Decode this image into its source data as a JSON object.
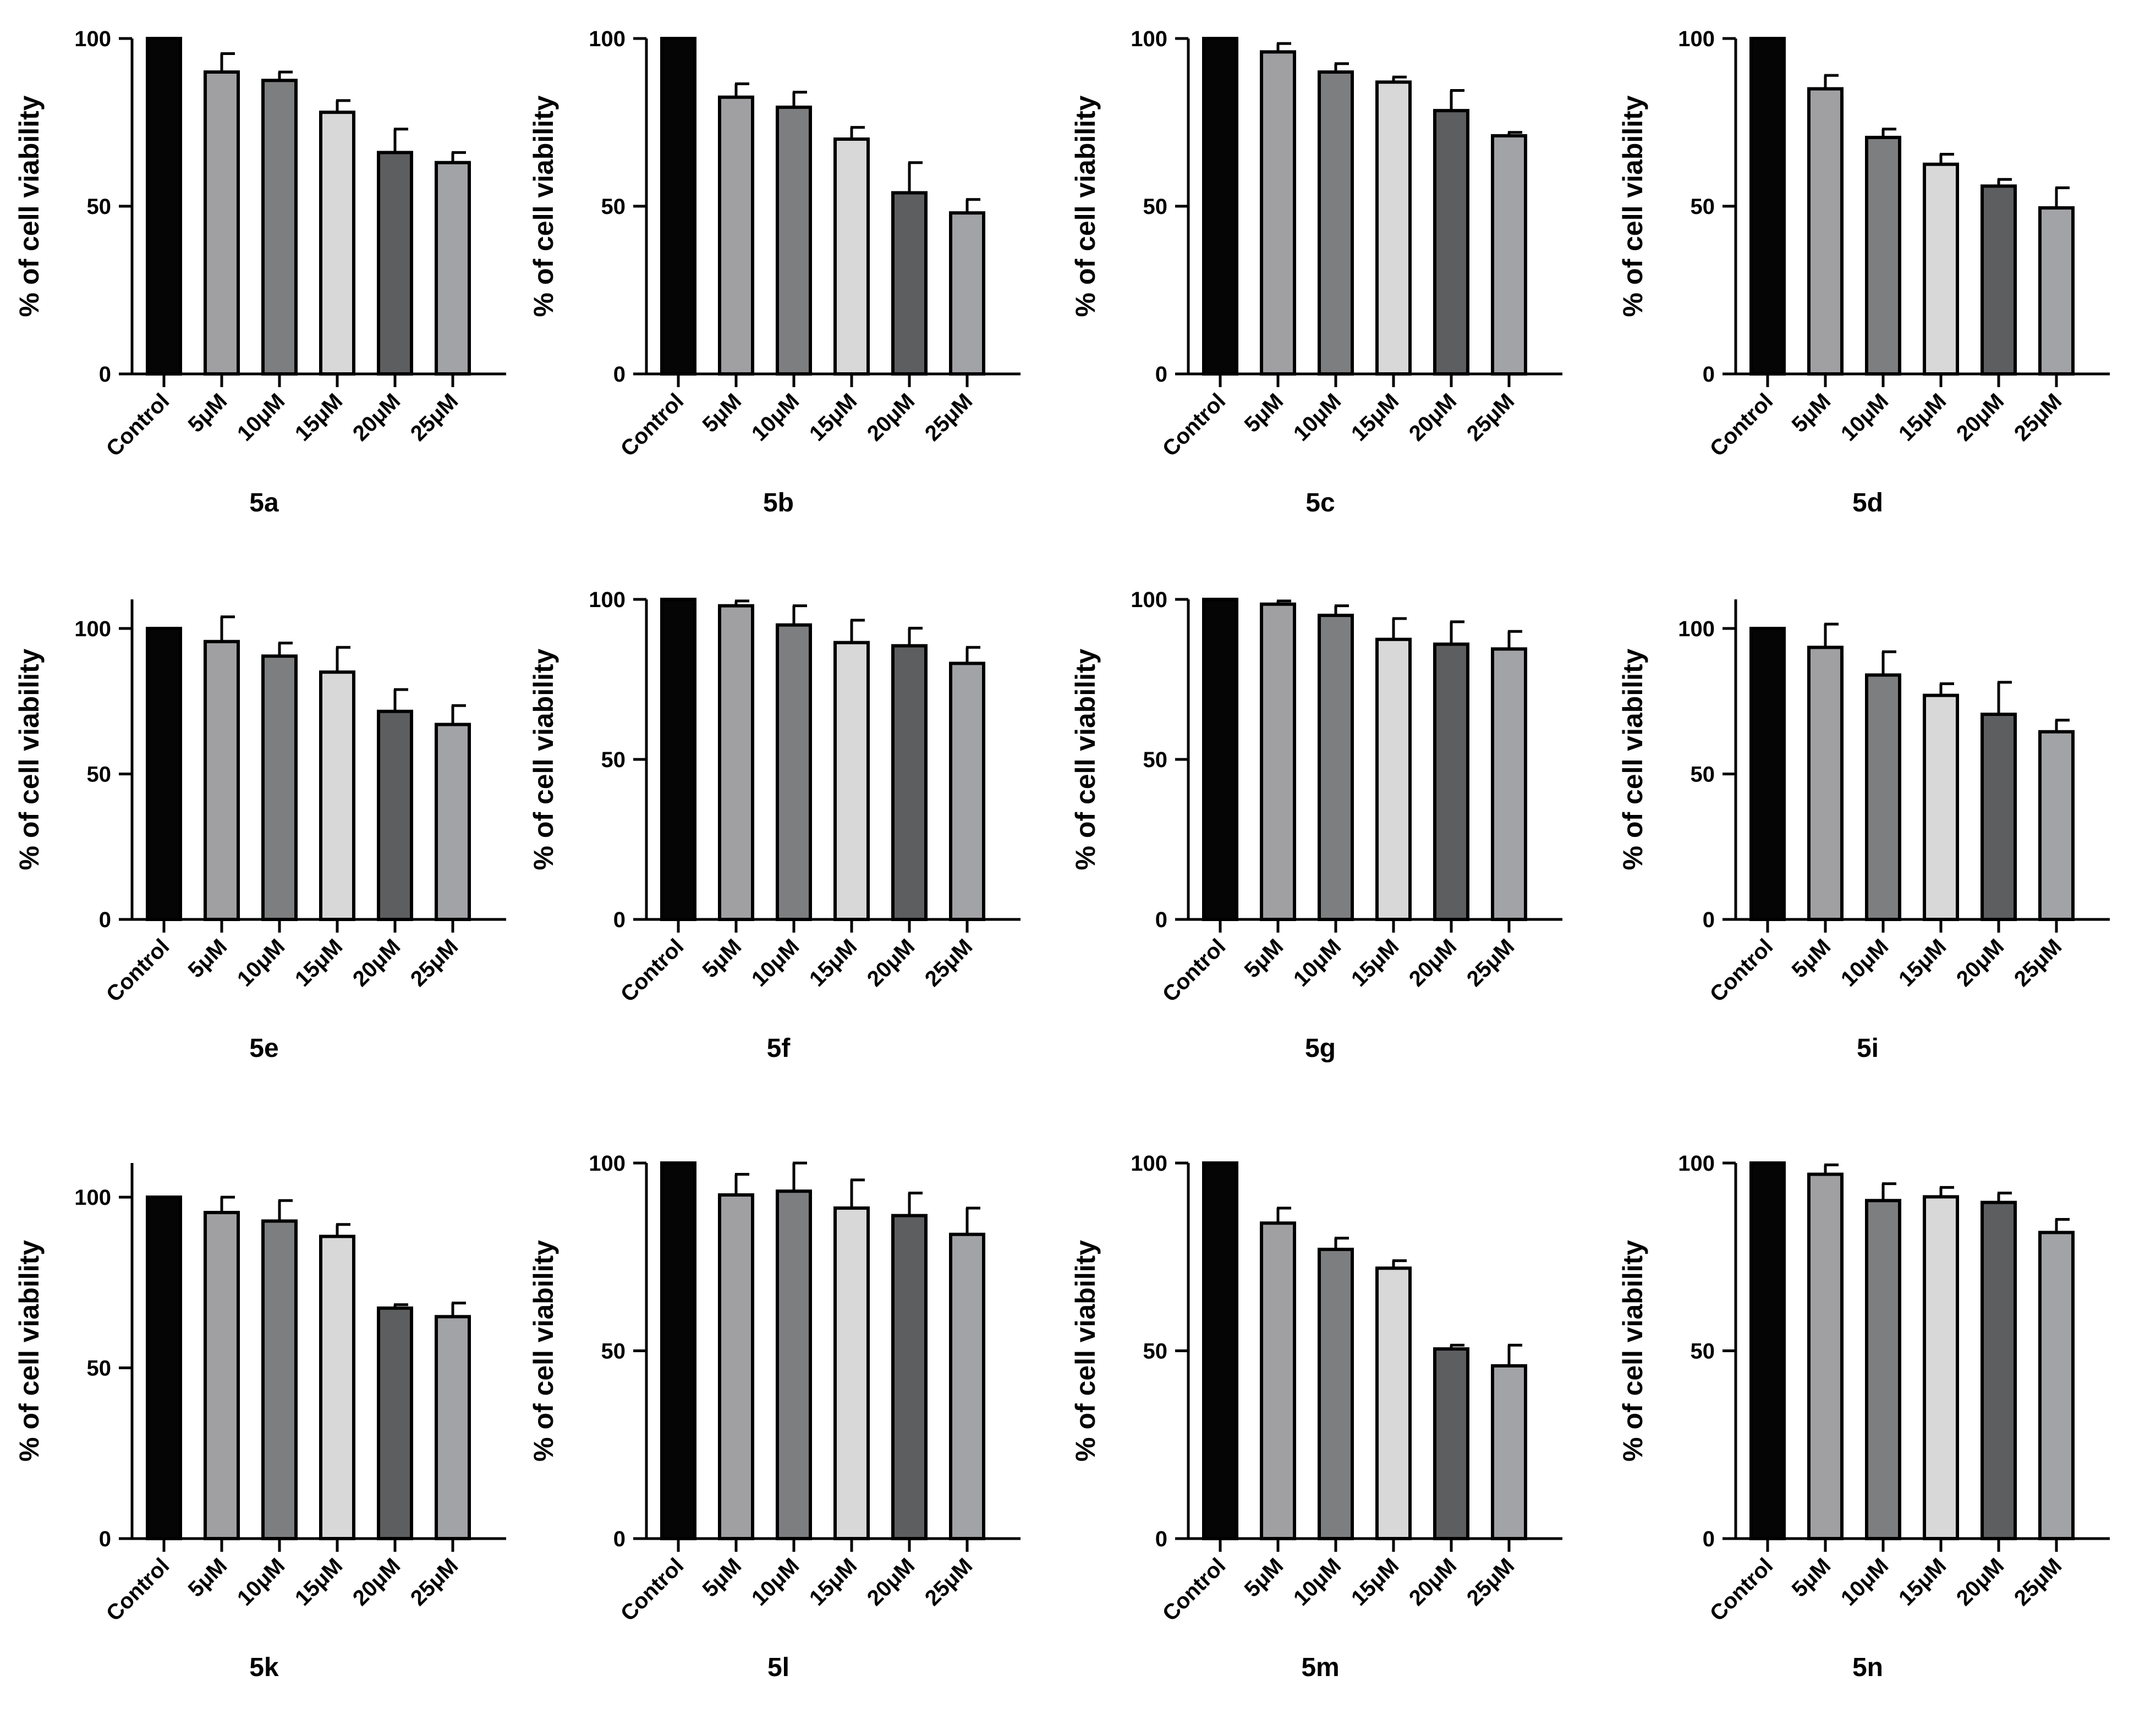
{
  "colors": {
    "axis": "#000000",
    "bar_outline": "#000000",
    "bar_fills": [
      "#050505",
      "#a0a0a3",
      "#7d7e80",
      "#d8d8d8",
      "#5d5e60",
      "#a2a3a6"
    ]
  },
  "chart_data": [
    {
      "type": "bar",
      "title": "5a",
      "xlabel": "5a",
      "ylabel": "% of cell viability",
      "ylim": [
        0,
        100
      ],
      "yticks": [
        0,
        50,
        100
      ],
      "categories": [
        "Control",
        "5μM",
        "10μM",
        "15μM",
        "20μM",
        "25μM"
      ],
      "values": [
        100,
        90,
        87.5,
        78,
        66,
        63
      ],
      "errors": [
        0,
        5.5,
        2.5,
        3.5,
        7,
        3
      ]
    },
    {
      "type": "bar",
      "title": "5b",
      "xlabel": "5b",
      "ylabel": "% of cell viability",
      "ylim": [
        0,
        100
      ],
      "yticks": [
        0,
        50,
        100
      ],
      "categories": [
        "Control",
        "5μM",
        "10μM",
        "15μM",
        "20μM",
        "25μM"
      ],
      "values": [
        100,
        82.5,
        79.5,
        70,
        54,
        48
      ],
      "errors": [
        0,
        4,
        4.5,
        3.5,
        9,
        4
      ]
    },
    {
      "type": "bar",
      "title": "5c",
      "xlabel": "5c",
      "ylabel": "% of cell viability",
      "ylim": [
        0,
        100
      ],
      "yticks": [
        0,
        50,
        100
      ],
      "categories": [
        "Control",
        "5μM",
        "10μM",
        "15μM",
        "20μM",
        "25μM"
      ],
      "values": [
        100,
        96,
        90,
        87,
        78.5,
        71
      ],
      "errors": [
        0,
        2.5,
        2.5,
        1.5,
        6,
        1
      ]
    },
    {
      "type": "bar",
      "title": "5d",
      "xlabel": "5d",
      "ylabel": "% of cell viability",
      "ylim": [
        0,
        100
      ],
      "yticks": [
        0,
        50,
        100
      ],
      "categories": [
        "Control",
        "5μM",
        "10μM",
        "15μM",
        "20μM",
        "25μM"
      ],
      "values": [
        100,
        85,
        70.5,
        62.5,
        56,
        49.5
      ],
      "errors": [
        0,
        4,
        2.5,
        3,
        2,
        6
      ]
    },
    {
      "type": "bar",
      "title": "5e",
      "xlabel": "5e",
      "ylabel": "% of cell viability",
      "ylim": [
        0,
        110
      ],
      "yticks": [
        0,
        50,
        100
      ],
      "categories": [
        "Control",
        "5μM",
        "10μM",
        "15μM",
        "20μM",
        "25μM"
      ],
      "values": [
        100,
        95.5,
        90.5,
        85,
        71.5,
        67
      ],
      "errors": [
        0,
        8.5,
        4.5,
        8.5,
        7.5,
        6.5
      ]
    },
    {
      "type": "bar",
      "title": "5f",
      "xlabel": "5f",
      "ylabel": "% of cell viability",
      "ylim": [
        0,
        100
      ],
      "yticks": [
        0,
        50,
        100
      ],
      "categories": [
        "Control",
        "5μM",
        "10μM",
        "15μM",
        "20μM",
        "25μM"
      ],
      "values": [
        100,
        98,
        92,
        86.5,
        85.5,
        80
      ],
      "errors": [
        0,
        1.5,
        6,
        7,
        5.5,
        5
      ]
    },
    {
      "type": "bar",
      "title": "5g",
      "xlabel": "5g",
      "ylabel": "% of cell viability",
      "ylim": [
        0,
        100
      ],
      "yticks": [
        0,
        50,
        100
      ],
      "categories": [
        "Control",
        "5μM",
        "10μM",
        "15μM",
        "20μM",
        "25μM"
      ],
      "values": [
        100,
        98.5,
        95,
        87.5,
        86,
        84.5
      ],
      "errors": [
        0,
        1,
        3,
        6.5,
        7,
        5.5
      ]
    },
    {
      "type": "bar",
      "title": "5i",
      "xlabel": "5i",
      "ylabel": "% of cell viability",
      "ylim": [
        0,
        110
      ],
      "yticks": [
        0,
        50,
        100
      ],
      "categories": [
        "Control",
        "5μM",
        "10μM",
        "15μM",
        "20μM",
        "25μM"
      ],
      "values": [
        100,
        93.5,
        84,
        77,
        70.5,
        64.5
      ],
      "errors": [
        0,
        8,
        8,
        4,
        11,
        4
      ]
    },
    {
      "type": "bar",
      "title": "5k",
      "xlabel": "5k",
      "ylabel": "% of cell viability",
      "ylim": [
        0,
        110
      ],
      "yticks": [
        0,
        50,
        100
      ],
      "categories": [
        "Control",
        "5μM",
        "10μM",
        "15μM",
        "20μM",
        "25μM"
      ],
      "values": [
        100,
        95.5,
        93,
        88.5,
        67.5,
        65
      ],
      "errors": [
        0,
        4.5,
        6,
        3.5,
        1,
        4
      ]
    },
    {
      "type": "bar",
      "title": "5l",
      "xlabel": "5l",
      "ylabel": "% of cell viability",
      "ylim": [
        0,
        100
      ],
      "yticks": [
        0,
        50,
        100
      ],
      "categories": [
        "Control",
        "5μM",
        "10μM",
        "15μM",
        "20μM",
        "25μM"
      ],
      "values": [
        100,
        91.5,
        92.5,
        88,
        86,
        81
      ],
      "errors": [
        0,
        5.5,
        7.5,
        7.5,
        6,
        7
      ]
    },
    {
      "type": "bar",
      "title": "5m",
      "xlabel": "5m",
      "ylabel": "% of cell viability",
      "ylim": [
        0,
        100
      ],
      "yticks": [
        0,
        50,
        100
      ],
      "categories": [
        "Control",
        "5μM",
        "10μM",
        "15μM",
        "20μM",
        "25μM"
      ],
      "values": [
        100,
        84,
        77,
        72,
        50.5,
        46
      ],
      "errors": [
        0,
        4,
        3,
        2,
        1,
        5.5
      ]
    },
    {
      "type": "bar",
      "title": "5n",
      "xlabel": "5n",
      "ylabel": "% of cell viability",
      "ylim": [
        0,
        100
      ],
      "yticks": [
        0,
        50,
        100
      ],
      "categories": [
        "Control",
        "5μM",
        "10μM",
        "15μM",
        "20μM",
        "25μM"
      ],
      "values": [
        100,
        97,
        90,
        91,
        89.5,
        81.5
      ],
      "errors": [
        0,
        2.5,
        4.5,
        2.5,
        2.5,
        3.5
      ]
    }
  ]
}
